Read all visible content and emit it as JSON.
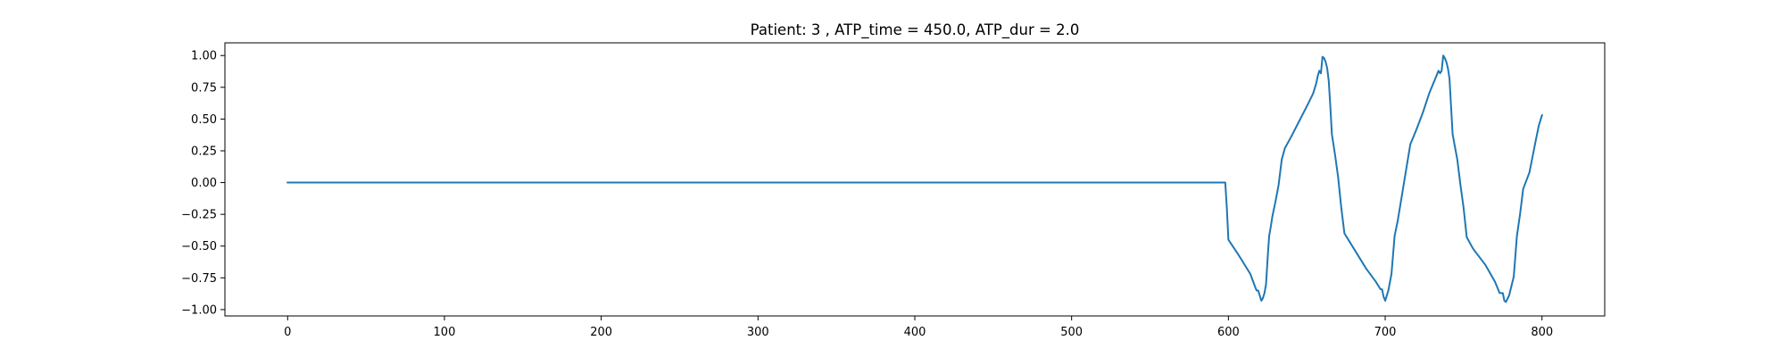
{
  "chart_data": {
    "type": "line",
    "title": "Patient: 3 , ATP_time = 450.0, ATP_dur = 2.0",
    "xlabel": "",
    "ylabel": "",
    "xlim": [
      -40,
      840
    ],
    "ylim": [
      -1.05,
      1.1
    ],
    "xticks": [
      0,
      100,
      200,
      300,
      400,
      500,
      600,
      700,
      800
    ],
    "xtick_labels": [
      "0",
      "100",
      "200",
      "300",
      "400",
      "500",
      "600",
      "700",
      "800"
    ],
    "yticks": [
      1.0,
      0.75,
      0.5,
      0.25,
      0.0,
      -0.25,
      -0.5,
      -0.75,
      -1.0
    ],
    "ytick_labels": [
      "1.00",
      "0.75",
      "0.50",
      "0.25",
      "0.00",
      "−0.25",
      "−0.50",
      "−0.75",
      "−1.00"
    ],
    "grid": false,
    "line_color": "#1f77b4",
    "series": [
      {
        "x": [
          0,
          598,
          599,
          600,
          607,
          614,
          617,
          618,
          619,
          620,
          621,
          622,
          623,
          624,
          625,
          626,
          627,
          628,
          630,
          632,
          634,
          636,
          640,
          645,
          650,
          654,
          656,
          657,
          658,
          659,
          660,
          661,
          662,
          663,
          664,
          665,
          666,
          668,
          670,
          672,
          674,
          680,
          688,
          694,
          697,
          698,
          699,
          700,
          702,
          704,
          706,
          708,
          712,
          716,
          720,
          724,
          728,
          732,
          734,
          735,
          736,
          737,
          738,
          739,
          740,
          741,
          742,
          743,
          746,
          748,
          750,
          752,
          756,
          764,
          770,
          773,
          775,
          776,
          777,
          779,
          782,
          784,
          786,
          788,
          792,
          796,
          798,
          800
        ],
        "y": [
          0.0,
          0.0,
          -0.2,
          -0.45,
          -0.58,
          -0.72,
          -0.82,
          -0.85,
          -0.85,
          -0.89,
          -0.93,
          -0.91,
          -0.87,
          -0.8,
          -0.6,
          -0.42,
          -0.35,
          -0.27,
          -0.15,
          -0.02,
          0.18,
          0.27,
          0.36,
          0.48,
          0.6,
          0.7,
          0.78,
          0.84,
          0.88,
          0.86,
          0.99,
          0.98,
          0.95,
          0.9,
          0.8,
          0.6,
          0.38,
          0.22,
          0.04,
          -0.2,
          -0.4,
          -0.52,
          -0.68,
          -0.78,
          -0.84,
          -0.84,
          -0.9,
          -0.93,
          -0.85,
          -0.72,
          -0.42,
          -0.3,
          0.0,
          0.3,
          0.42,
          0.55,
          0.7,
          0.82,
          0.88,
          0.86,
          0.88,
          1.0,
          0.98,
          0.95,
          0.9,
          0.82,
          0.6,
          0.38,
          0.18,
          -0.02,
          -0.2,
          -0.43,
          -0.52,
          -0.65,
          -0.78,
          -0.87,
          -0.87,
          -0.93,
          -0.94,
          -0.89,
          -0.74,
          -0.42,
          -0.25,
          -0.05,
          0.08,
          0.33,
          0.45,
          0.53
        ]
      }
    ]
  }
}
